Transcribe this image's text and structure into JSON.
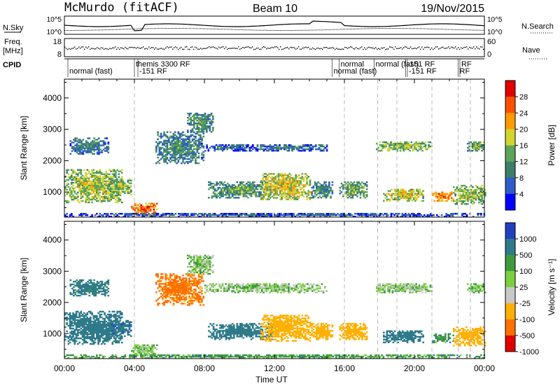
{
  "header": {
    "station": "McMurdo (fitACF)",
    "beam": "Beam 10",
    "date": "19/Nov/2015"
  },
  "aux_panels": {
    "nsky_label": "N.Sky",
    "nsky_ticks": [
      "10^5",
      "10^0"
    ],
    "nsearch_label": "N.Search",
    "nsearch_ticks": [
      "10^5",
      "10^0"
    ],
    "freq_label_line1": "Freq.",
    "freq_label_line2": "[MHz]",
    "freq_ticks": [
      "18",
      "8"
    ],
    "nave_label": "Nave",
    "nave_ticks": [
      "60",
      "0"
    ],
    "cpid_label": "CPID"
  },
  "cpid_segments": [
    {
      "label": "normal (fast)",
      "t": 0.2,
      "row": 1
    },
    {
      "label": "themis 3300 RF",
      "t": 4.0,
      "row": 0
    },
    {
      "label": "-151 RF",
      "t": 4.2,
      "row": 1
    },
    {
      "label": "normal",
      "t": 15.7,
      "row": 0
    },
    {
      "label": "normal (fast)",
      "t": 15.3,
      "row": 1
    },
    {
      "label": "normal (fast)",
      "t": 17.7,
      "row": 0
    },
    {
      "label": "-151 RF",
      "t": 19.5,
      "row": 0
    },
    {
      "label": "-151 RF",
      "t": 19.6,
      "row": 1
    },
    {
      "label": "RF",
      "t": 22.6,
      "row": 0
    },
    {
      "label": "RF",
      "t": 22.5,
      "row": 1
    }
  ],
  "chart_data": [
    {
      "type": "heatmap",
      "name": "power",
      "xlabel": "",
      "ylabel": "Slant Range [km]",
      "xlim": [
        0,
        24
      ],
      "ylim": [
        200,
        4600
      ],
      "y_ticks": [
        1000,
        2000,
        3000,
        4000
      ],
      "colorbar": {
        "label": "Power [dB]",
        "ticks": [
          "4",
          "8",
          "12",
          "16",
          "20",
          "24",
          "28"
        ],
        "colors": [
          "#0000ff",
          "#2f5cc8",
          "#3a7f6a",
          "#5aa55a",
          "#d4d430",
          "#ff9a00",
          "#ff5000",
          "#e00000"
        ]
      },
      "echo_bands": [
        {
          "t0": 0.0,
          "t1": 3.3,
          "r0": 650,
          "r1": 1700,
          "v": 18
        },
        {
          "t0": 0.3,
          "t1": 2.5,
          "r0": 2200,
          "r1": 2700,
          "v": 11
        },
        {
          "t0": 2.5,
          "t1": 3.8,
          "r0": 900,
          "r1": 1400,
          "v": 17
        },
        {
          "t0": 3.8,
          "t1": 5.3,
          "r0": 250,
          "r1": 650,
          "v": 26
        },
        {
          "t0": 5.2,
          "t1": 7.9,
          "r0": 1900,
          "r1": 2900,
          "v": 12
        },
        {
          "t0": 7.0,
          "t1": 8.5,
          "r0": 2900,
          "r1": 3500,
          "v": 13
        },
        {
          "t0": 8.0,
          "t1": 10.5,
          "r0": 2300,
          "r1": 2500,
          "v": 9
        },
        {
          "t0": 8.2,
          "t1": 11.8,
          "r0": 800,
          "r1": 1300,
          "v": 14
        },
        {
          "t0": 11.2,
          "t1": 14.0,
          "r0": 750,
          "r1": 1600,
          "v": 20
        },
        {
          "t0": 10.0,
          "t1": 15.0,
          "r0": 2300,
          "r1": 2500,
          "v": 10
        },
        {
          "t0": 14.0,
          "t1": 15.3,
          "r0": 800,
          "r1": 1300,
          "v": 13
        },
        {
          "t0": 15.7,
          "t1": 17.3,
          "r0": 800,
          "r1": 1300,
          "v": 15
        },
        {
          "t0": 17.8,
          "t1": 21.0,
          "r0": 2300,
          "r1": 2600,
          "v": 17
        },
        {
          "t0": 18.2,
          "t1": 20.5,
          "r0": 700,
          "r1": 1100,
          "v": 19
        },
        {
          "t0": 21.0,
          "t1": 22.2,
          "r0": 700,
          "r1": 1000,
          "v": 26
        },
        {
          "t0": 22.2,
          "t1": 24.0,
          "r0": 600,
          "r1": 1200,
          "v": 17
        },
        {
          "t0": 23.0,
          "t1": 24.0,
          "r0": 2300,
          "r1": 2600,
          "v": 15
        },
        {
          "t0": 0.0,
          "t1": 24.0,
          "r0": 200,
          "r1": 320,
          "v": 8
        }
      ]
    },
    {
      "type": "heatmap",
      "name": "velocity",
      "xlabel": "Time UT",
      "ylabel": "Slant Range [km]",
      "xlim": [
        0,
        24
      ],
      "ylim": [
        200,
        4600
      ],
      "x_ticks": [
        "00:00",
        "04:00",
        "08:00",
        "12:00",
        "16:00",
        "20:00",
        "00:00"
      ],
      "y_ticks": [
        1000,
        2000,
        3000,
        4000
      ],
      "colorbar": {
        "label": "Velocity [m s⁻¹]",
        "ticks": [
          "1000",
          "500",
          "100",
          "25",
          "-25",
          "-100",
          "-500",
          "-1000"
        ],
        "colors": [
          "#2040c0",
          "#2e7a8a",
          "#3f9a3f",
          "#7cd040",
          "#c8c8c8",
          "#ffb000",
          "#ff7000",
          "#e00000"
        ]
      },
      "echo_bands": [
        {
          "t0": 0.0,
          "t1": 3.3,
          "r0": 650,
          "r1": 1700,
          "v": 300
        },
        {
          "t0": 0.3,
          "t1": 2.5,
          "r0": 2200,
          "r1": 2700,
          "v": 150
        },
        {
          "t0": 2.5,
          "t1": 3.8,
          "r0": 900,
          "r1": 1400,
          "v": 400
        },
        {
          "t0": 3.8,
          "t1": 5.3,
          "r0": 250,
          "r1": 650,
          "v": 0
        },
        {
          "t0": 5.2,
          "t1": 7.9,
          "r0": 1900,
          "r1": 2900,
          "v": -700
        },
        {
          "t0": 7.0,
          "t1": 8.5,
          "r0": 2900,
          "r1": 3500,
          "v": 0
        },
        {
          "t0": 8.0,
          "t1": 15.0,
          "r0": 2300,
          "r1": 2600,
          "v": 0
        },
        {
          "t0": 8.2,
          "t1": 11.8,
          "r0": 800,
          "r1": 1300,
          "v": 300
        },
        {
          "t0": 11.2,
          "t1": 14.0,
          "r0": 750,
          "r1": 1600,
          "v": -300
        },
        {
          "t0": 14.0,
          "t1": 15.3,
          "r0": 800,
          "r1": 1300,
          "v": -250
        },
        {
          "t0": 15.7,
          "t1": 17.3,
          "r0": 800,
          "r1": 1300,
          "v": -300
        },
        {
          "t0": 17.8,
          "t1": 21.0,
          "r0": 2300,
          "r1": 2600,
          "v": 0
        },
        {
          "t0": 18.2,
          "t1": 20.5,
          "r0": 700,
          "r1": 1100,
          "v": 300
        },
        {
          "t0": 21.0,
          "t1": 22.2,
          "r0": 700,
          "r1": 1000,
          "v": 80
        },
        {
          "t0": 22.2,
          "t1": 24.0,
          "r0": 600,
          "r1": 1200,
          "v": -300
        },
        {
          "t0": 23.0,
          "t1": 24.0,
          "r0": 2300,
          "r1": 2600,
          "v": 0
        },
        {
          "t0": 0.0,
          "t1": 24.0,
          "r0": 200,
          "r1": 320,
          "v": 60
        }
      ]
    }
  ]
}
